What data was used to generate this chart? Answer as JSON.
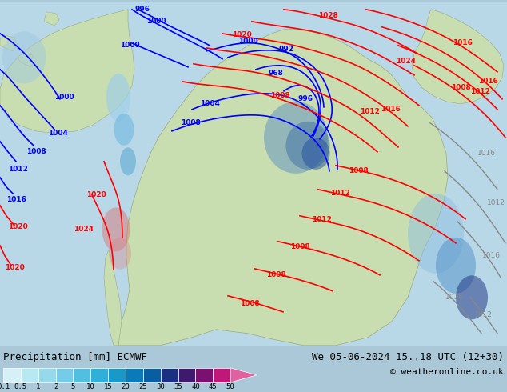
{
  "title_left": "Precipitation [mm] ECMWF",
  "title_right": "We 05-06-2024 15..18 UTC (12+30)",
  "copyright": "© weatheronline.co.uk",
  "colorbar_labels": [
    "0.1",
    "0.5",
    "1",
    "2",
    "5",
    "10",
    "15",
    "20",
    "25",
    "30",
    "35",
    "40",
    "45",
    "50"
  ],
  "colorbar_colors": [
    "#d6f0f7",
    "#b8e8f2",
    "#96d9ed",
    "#74cce8",
    "#52bfe0",
    "#30b0d8",
    "#1899c8",
    "#0a7ab8",
    "#085ea0",
    "#1a3080",
    "#3d1a6e",
    "#7a1070",
    "#c01878",
    "#e060a0"
  ],
  "fig_bg_color": "#aac8d8",
  "bottom_bg_color": "#ffffff",
  "map_ocean_color": "#b8d8e8",
  "map_land_color": "#c8ddb0",
  "map_land_dark_color": "#b0c898",
  "fig_width": 6.34,
  "fig_height": 4.9,
  "dpi": 100
}
